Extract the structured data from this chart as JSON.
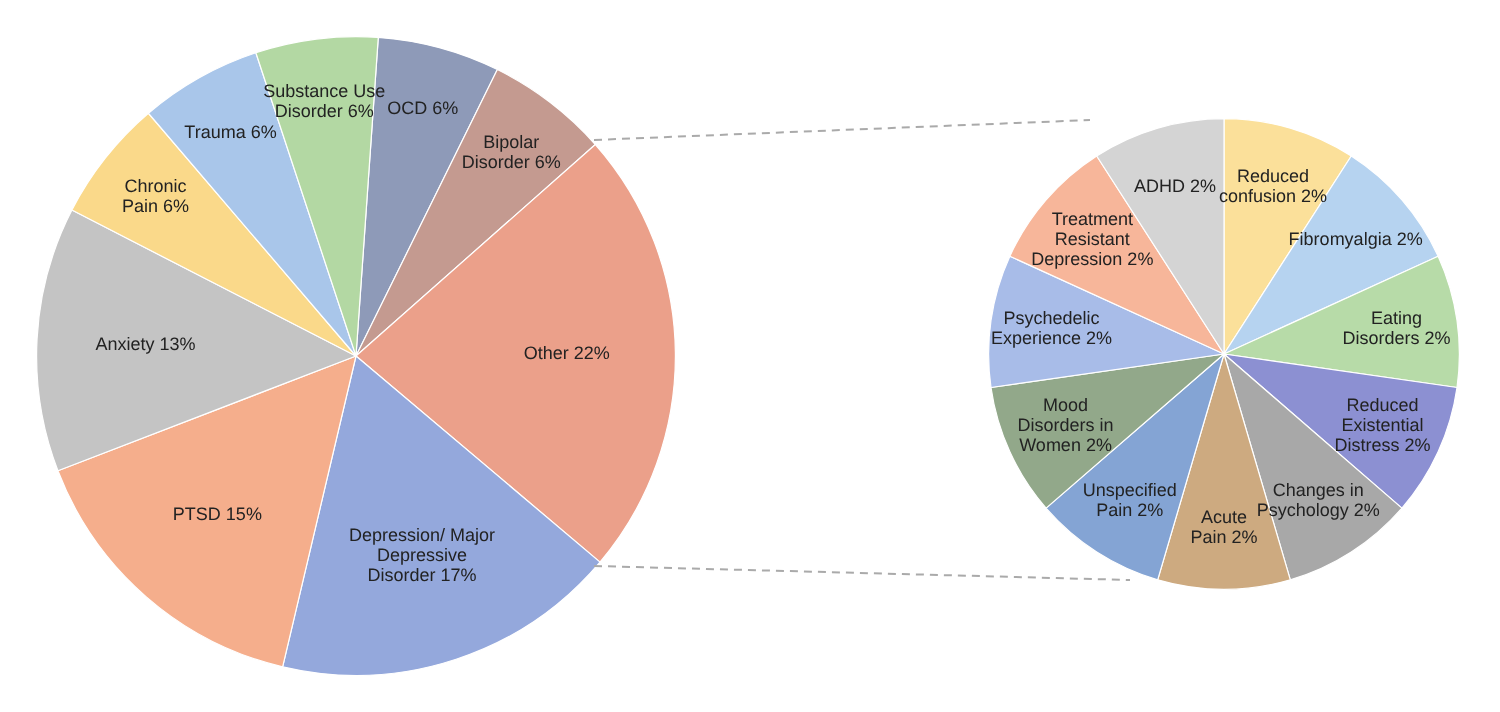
{
  "chart_data": [
    {
      "type": "pie",
      "categories": [
        "OCD",
        "Bipolar Disorder",
        "Other",
        "Depression/ Major Depressive Disorder",
        "PTSD",
        "Anxiety",
        "Chronic Pain",
        "Trauma",
        "Substance Use Disorder"
      ],
      "values": [
        6,
        6,
        22,
        17,
        15,
        13,
        6,
        6,
        6
      ],
      "value_labels": [
        "6%",
        "6%",
        "22%",
        "17%",
        "15%",
        "13%",
        "6%",
        "6%",
        "6%"
      ],
      "colors": [
        "#8e9ab8",
        "#c49a90",
        "#eba08a",
        "#94a8dc",
        "#f5ae8c",
        "#c4c4c4",
        "#fad98a",
        "#a9c6ea",
        "#b3d8a3"
      ]
    },
    {
      "type": "pie",
      "categories": [
        "Reduced confusion",
        "Fibromyalgia",
        "Eating Disorders",
        "Reduced Existential Distress",
        "Changes in Psychology",
        "Acute Pain",
        "Unspecified Pain",
        "Mood Disorders in Women",
        "Psychedelic Experience",
        "Treatment Resistant Depression",
        "ADHD"
      ],
      "values": [
        2,
        2,
        2,
        2,
        2,
        2,
        2,
        2,
        2,
        2,
        2
      ],
      "value_labels": [
        "2%",
        "2%",
        "2%",
        "2%",
        "2%",
        "2%",
        "2%",
        "2%",
        "2%",
        "2%",
        "2%"
      ],
      "colors": [
        "#fbe09a",
        "#b6d3f0",
        "#b7dba8",
        "#8c90d2",
        "#a8a8a8",
        "#cdaa80",
        "#84a4d4",
        "#92a88a",
        "#a8bce8",
        "#f7b69a",
        "#d4d4d4"
      ]
    }
  ]
}
